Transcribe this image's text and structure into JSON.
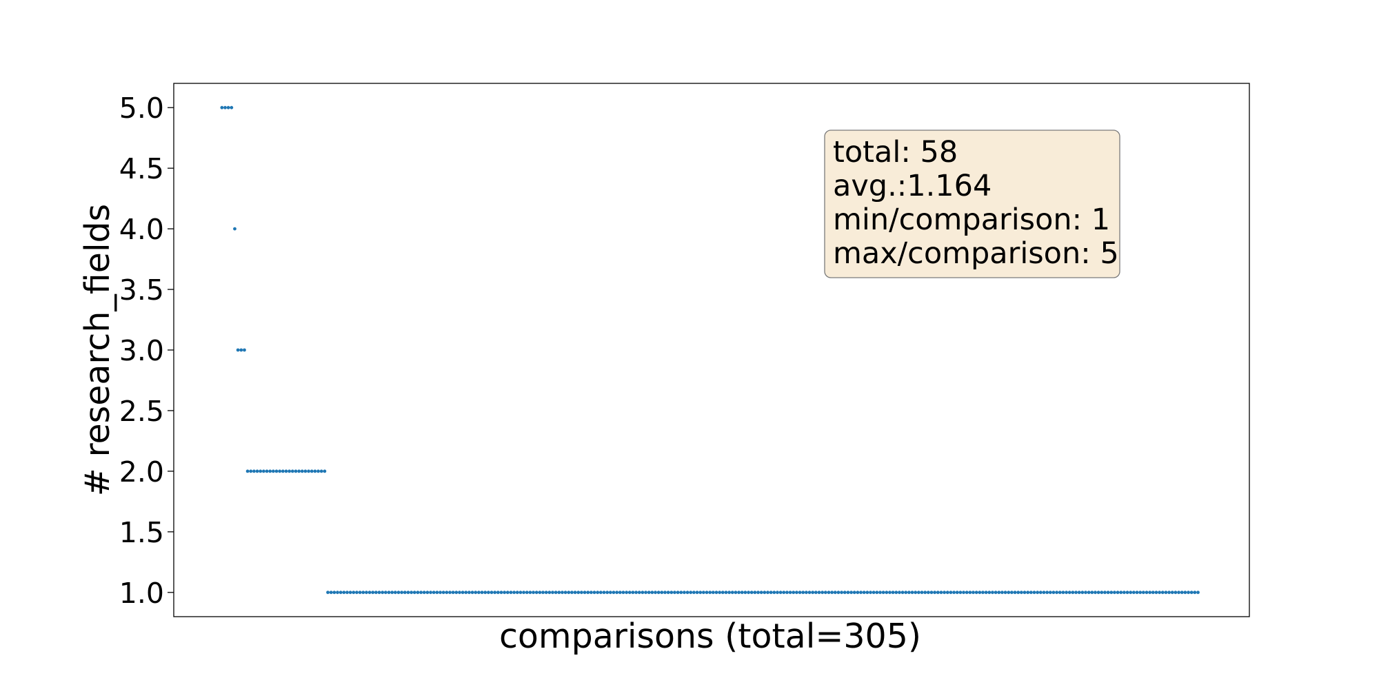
{
  "chart_data": {
    "type": "scatter",
    "xlabel": "comparisons (total=305)",
    "ylabel": "# research_fields",
    "ylim": [
      0.8,
      5.2
    ],
    "yticks": [
      "1.0",
      "1.5",
      "2.0",
      "2.5",
      "3.0",
      "3.5",
      "4.0",
      "4.5",
      "5.0"
    ],
    "xticks_shown": false,
    "grid": false,
    "marker_color": "#1f77b4",
    "total_points": 305,
    "groups": [
      {
        "y": 5,
        "count": 4
      },
      {
        "y": 4,
        "count": 1
      },
      {
        "y": 3,
        "count": 3
      },
      {
        "y": 2,
        "count": 25
      },
      {
        "y": 1,
        "count": 272
      }
    ],
    "stats_box": {
      "location": "upper right",
      "facecolor": "#f8ecd8",
      "lines": [
        "total: 58",
        "avg.:1.164",
        "min/comparison: 1",
        "max/comparison: 5"
      ]
    }
  }
}
